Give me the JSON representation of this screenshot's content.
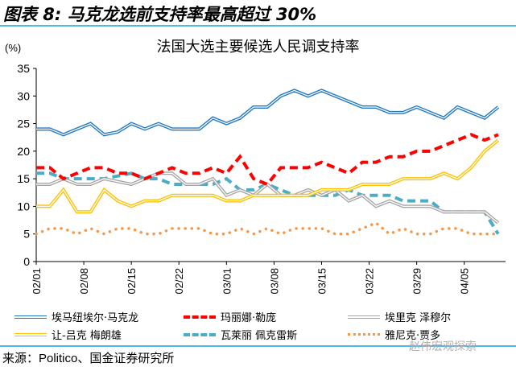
{
  "figure_title": "图表 8: 马克龙选前支持率最高超过 30%",
  "source": "来源：Politico、国金证券研究所",
  "watermark": "赵伟宏观探索",
  "chart_data": {
    "type": "line",
    "title": "法国大选主要候选人民调支持率",
    "ylabel": "(%)",
    "xlabel": "",
    "ylim": [
      0,
      35
    ],
    "yticks": [
      0,
      5,
      10,
      15,
      20,
      25,
      30,
      35
    ],
    "xticks": [
      "02/01",
      "02/08",
      "02/15",
      "02/22",
      "03/01",
      "03/08",
      "03/15",
      "03/22",
      "03/29",
      "04/05"
    ],
    "grid": false,
    "legend_position": "bottom",
    "x": [
      "02/01",
      "02/03",
      "02/05",
      "02/07",
      "02/09",
      "02/11",
      "02/13",
      "02/15",
      "02/17",
      "02/19",
      "02/21",
      "02/23",
      "02/25",
      "02/27",
      "03/01",
      "03/03",
      "03/05",
      "03/07",
      "03/09",
      "03/11",
      "03/13",
      "03/15",
      "03/17",
      "03/19",
      "03/21",
      "03/23",
      "03/25",
      "03/27",
      "03/29",
      "03/31",
      "04/02",
      "04/04",
      "04/06",
      "04/08",
      "04/10"
    ],
    "series": [
      {
        "name": "埃马纽埃尔·马克龙",
        "color": "#1f77c8",
        "style": "double",
        "values": [
          24,
          24,
          23,
          24,
          25,
          23,
          23.5,
          25,
          24,
          25,
          24,
          24,
          24,
          26,
          25,
          26,
          28,
          28,
          30,
          31,
          30,
          31,
          30,
          29,
          28,
          28,
          27,
          27,
          28,
          27,
          26,
          28,
          27,
          26,
          28
        ]
      },
      {
        "name": "玛丽娜·勒庞",
        "color": "#ff0000",
        "style": "dashed",
        "values": [
          17,
          17,
          15,
          16,
          17,
          17,
          16,
          16,
          15,
          16,
          17,
          16,
          16,
          17,
          16,
          19,
          15,
          14,
          17,
          17,
          17,
          18,
          17,
          16,
          18,
          18,
          19,
          19,
          20,
          20,
          21,
          22,
          23,
          22,
          23
        ]
      },
      {
        "name": "埃里克 泽穆尔",
        "color": "#a6a6a6",
        "style": "double",
        "values": [
          14,
          14,
          15,
          14,
          14,
          15,
          14.5,
          14,
          15,
          16,
          16,
          14,
          14,
          15,
          12,
          13,
          12,
          14,
          12,
          12,
          13,
          12,
          13,
          11,
          12,
          10,
          11,
          10,
          10,
          10,
          9,
          9,
          9,
          9,
          7
        ]
      },
      {
        "name": "让-吕克 梅朗雄",
        "color": "#ffc000",
        "style": "double",
        "values": [
          10,
          10,
          13,
          9,
          9,
          13,
          11,
          10,
          11,
          11,
          12,
          12,
          12,
          12,
          11,
          11,
          12,
          12,
          12,
          12,
          12,
          13,
          13,
          13,
          14,
          14,
          14,
          15,
          15,
          15,
          16,
          15,
          17,
          20,
          22
        ]
      },
      {
        "name": "瓦莱丽 佩克雷斯",
        "color": "#4bacc6",
        "style": "dashed",
        "values": [
          16,
          16,
          15,
          15,
          15,
          15,
          15.5,
          16,
          15,
          15,
          14,
          14,
          14,
          14,
          15,
          13,
          13,
          14,
          13,
          12,
          12,
          12,
          12,
          13,
          12,
          12,
          12,
          11,
          11,
          11,
          9,
          9,
          9,
          9,
          5
        ]
      },
      {
        "name": "雅尼克·贾多",
        "color": "#f79646",
        "style": "dotted",
        "values": [
          5,
          6,
          6,
          5,
          6,
          5,
          6,
          6,
          5,
          5,
          6,
          6,
          6,
          5,
          5,
          6,
          5,
          6,
          5,
          6,
          6,
          6,
          5,
          5,
          6,
          7,
          5,
          6,
          5,
          5,
          6,
          6,
          5,
          5,
          5
        ]
      }
    ]
  }
}
